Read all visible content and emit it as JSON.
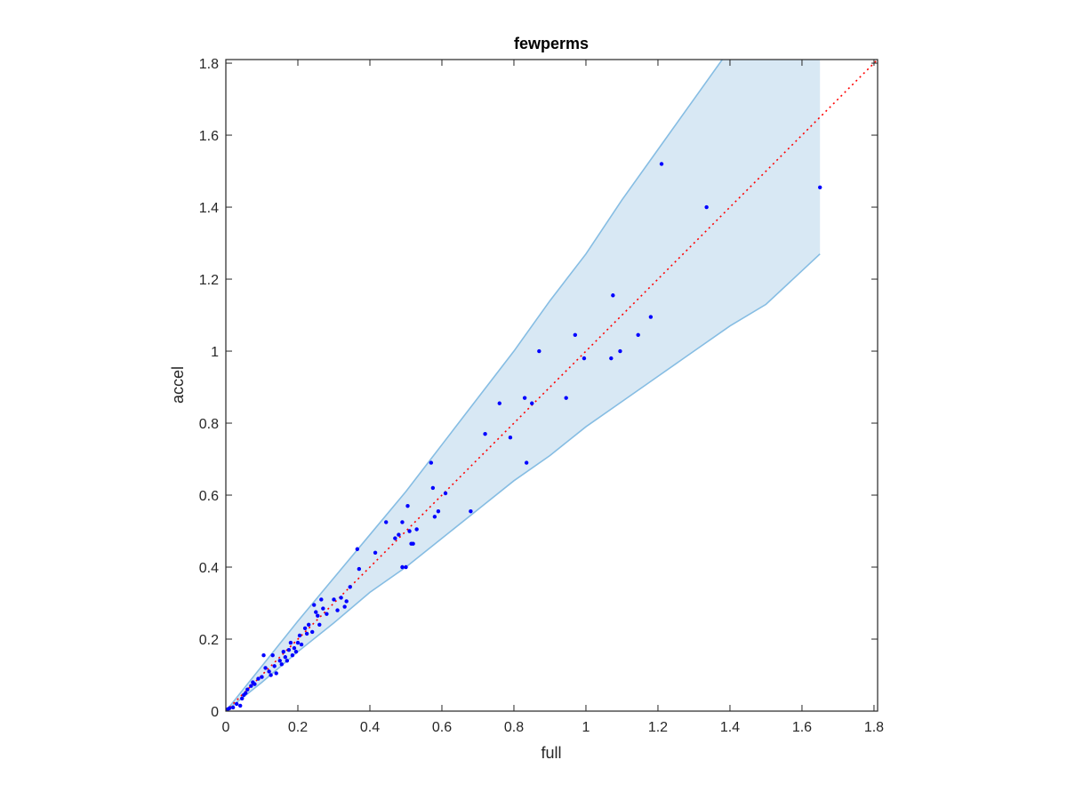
{
  "chart_data": {
    "type": "scatter",
    "title": "fewperms",
    "xlabel": "full",
    "ylabel": "accel",
    "xlim": [
      0,
      1.81
    ],
    "ylim": [
      0,
      1.81
    ],
    "xticks": [
      0,
      0.2,
      0.4,
      0.6,
      0.8,
      1,
      1.2,
      1.4,
      1.6,
      1.8
    ],
    "yticks": [
      0,
      0.2,
      0.4,
      0.6,
      0.8,
      1,
      1.2,
      1.4,
      1.6,
      1.8
    ],
    "xtick_labels": [
      "0",
      "0.2",
      "0.4",
      "0.6",
      "0.8",
      "1",
      "1.2",
      "1.4",
      "1.6",
      "1.8"
    ],
    "ytick_labels": [
      "0",
      "0.2",
      "0.4",
      "0.6",
      "0.8",
      "1",
      "1.2",
      "1.4",
      "1.6",
      "1.8"
    ],
    "grid": false,
    "colors": {
      "points": "#0000ff",
      "reference_line": "#ff0000",
      "band_fill": "#d8e8f4",
      "band_edge": "#86bde3",
      "axes": "#262626"
    },
    "reference_line": {
      "x": [
        0,
        1.81
      ],
      "y": [
        0,
        1.81
      ],
      "style": "dotted"
    },
    "band": {
      "x": [
        0,
        0.1,
        0.2,
        0.3,
        0.4,
        0.5,
        0.6,
        0.7,
        0.8,
        0.9,
        1.0,
        1.1,
        1.2,
        1.3,
        1.4,
        1.5,
        1.65
      ],
      "upper": [
        0,
        0.125,
        0.25,
        0.37,
        0.49,
        0.61,
        0.74,
        0.87,
        1.0,
        1.14,
        1.27,
        1.42,
        1.56,
        1.7,
        1.84,
        1.98,
        2.2
      ],
      "lower": [
        0,
        0.08,
        0.165,
        0.245,
        0.33,
        0.4,
        0.48,
        0.56,
        0.64,
        0.71,
        0.79,
        0.86,
        0.93,
        1.0,
        1.07,
        1.13,
        1.27
      ],
      "right_edge_top": 1.81
    },
    "points": [
      [
        0.005,
        0.005
      ],
      [
        0.01,
        0.008
      ],
      [
        0.02,
        0.01
      ],
      [
        0.03,
        0.02
      ],
      [
        0.04,
        0.015
      ],
      [
        0.045,
        0.035
      ],
      [
        0.05,
        0.045
      ],
      [
        0.055,
        0.05
      ],
      [
        0.06,
        0.06
      ],
      [
        0.07,
        0.07
      ],
      [
        0.075,
        0.08
      ],
      [
        0.08,
        0.075
      ],
      [
        0.09,
        0.09
      ],
      [
        0.1,
        0.095
      ],
      [
        0.105,
        0.155
      ],
      [
        0.11,
        0.12
      ],
      [
        0.12,
        0.11
      ],
      [
        0.125,
        0.1
      ],
      [
        0.13,
        0.155
      ],
      [
        0.135,
        0.125
      ],
      [
        0.14,
        0.105
      ],
      [
        0.15,
        0.14
      ],
      [
        0.155,
        0.13
      ],
      [
        0.16,
        0.165
      ],
      [
        0.165,
        0.15
      ],
      [
        0.17,
        0.14
      ],
      [
        0.175,
        0.17
      ],
      [
        0.18,
        0.19
      ],
      [
        0.185,
        0.155
      ],
      [
        0.19,
        0.175
      ],
      [
        0.195,
        0.165
      ],
      [
        0.2,
        0.19
      ],
      [
        0.205,
        0.21
      ],
      [
        0.21,
        0.185
      ],
      [
        0.22,
        0.23
      ],
      [
        0.225,
        0.215
      ],
      [
        0.23,
        0.24
      ],
      [
        0.24,
        0.22
      ],
      [
        0.245,
        0.295
      ],
      [
        0.25,
        0.275
      ],
      [
        0.255,
        0.265
      ],
      [
        0.26,
        0.24
      ],
      [
        0.265,
        0.31
      ],
      [
        0.27,
        0.285
      ],
      [
        0.28,
        0.27
      ],
      [
        0.3,
        0.31
      ],
      [
        0.31,
        0.28
      ],
      [
        0.32,
        0.315
      ],
      [
        0.33,
        0.29
      ],
      [
        0.335,
        0.305
      ],
      [
        0.345,
        0.345
      ],
      [
        0.365,
        0.45
      ],
      [
        0.37,
        0.395
      ],
      [
        0.415,
        0.44
      ],
      [
        0.445,
        0.525
      ],
      [
        0.47,
        0.48
      ],
      [
        0.48,
        0.49
      ],
      [
        0.49,
        0.525
      ],
      [
        0.5,
        0.4
      ],
      [
        0.505,
        0.57
      ],
      [
        0.51,
        0.5
      ],
      [
        0.515,
        0.465
      ],
      [
        0.52,
        0.465
      ],
      [
        0.53,
        0.505
      ],
      [
        0.57,
        0.69
      ],
      [
        0.575,
        0.62
      ],
      [
        0.58,
        0.54
      ],
      [
        0.59,
        0.555
      ],
      [
        0.61,
        0.605
      ],
      [
        0.68,
        0.555
      ],
      [
        0.72,
        0.77
      ],
      [
        0.76,
        0.855
      ],
      [
        0.79,
        0.76
      ],
      [
        0.83,
        0.87
      ],
      [
        0.835,
        0.69
      ],
      [
        0.85,
        0.855
      ],
      [
        0.87,
        1.0
      ],
      [
        0.945,
        0.87
      ],
      [
        0.97,
        1.045
      ],
      [
        0.995,
        0.98
      ],
      [
        1.07,
        0.98
      ],
      [
        1.075,
        1.155
      ],
      [
        1.095,
        1.0
      ],
      [
        1.145,
        1.045
      ],
      [
        1.18,
        1.095
      ],
      [
        1.21,
        1.52
      ],
      [
        1.335,
        1.4
      ],
      [
        1.65,
        1.455
      ],
      [
        0.49,
        0.4
      ]
    ]
  }
}
